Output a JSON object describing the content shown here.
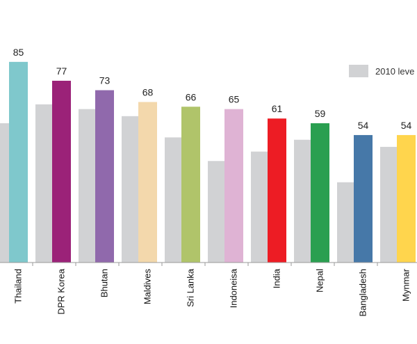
{
  "chart_data": {
    "type": "bar",
    "categories": [
      "Thailand",
      "DPR Korea",
      "Bhutan",
      "Maldives",
      "Sri Lanka",
      "Indoneisa",
      "India",
      "Nepal",
      "Bangladesh",
      "Mynmar"
    ],
    "series": [
      {
        "name": "2010 leve",
        "values": [
          59,
          67,
          65,
          62,
          53,
          43,
          47,
          52,
          34,
          49
        ],
        "color": "#d1d2d4"
      },
      {
        "name": "",
        "values": [
          85,
          77,
          73,
          68,
          66,
          65,
          61,
          59,
          54,
          54
        ],
        "colors": [
          "#7fc8cc",
          "#9b2278",
          "#9069ac",
          "#f3d8ac",
          "#b0c46a",
          "#dfb3d4",
          "#ed1c24",
          "#2a9f50",
          "#4678a8",
          "#ffd54d"
        ]
      }
    ],
    "data_labels": [
      "85",
      "77",
      "73",
      "68",
      "66",
      "65",
      "61",
      "59",
      "54",
      "54"
    ],
    "legend": {
      "position": "top-right",
      "label": "2010 leve"
    },
    "ylim": [
      0,
      88
    ],
    "grid": false,
    "title": "",
    "xlabel": "",
    "ylabel": ""
  }
}
